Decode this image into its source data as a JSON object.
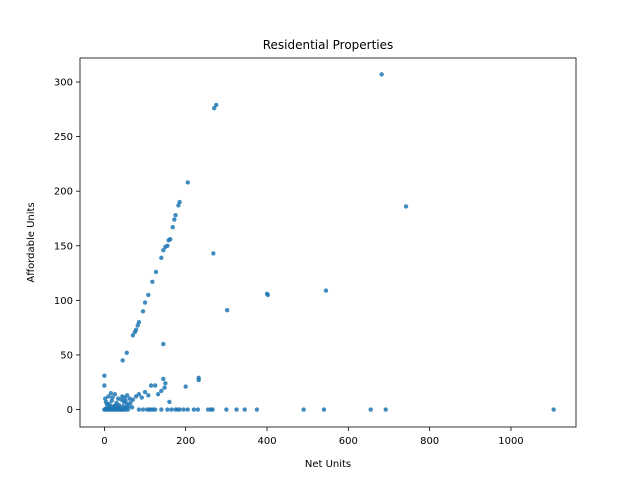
{
  "chart_data": {
    "type": "scatter",
    "title": "Residential Properties",
    "xlabel": "Net Units",
    "ylabel": "Affordable Units",
    "xlim": [
      -60,
      1160
    ],
    "ylim": [
      -16,
      322
    ],
    "xticks": [
      0,
      200,
      400,
      600,
      800,
      1000
    ],
    "yticks": [
      0,
      50,
      100,
      150,
      200,
      250,
      300
    ],
    "grid": false,
    "legend": "none",
    "point_color": "#1f77b4",
    "series": [
      {
        "points": [
          [
            0,
            0
          ],
          [
            2,
            0
          ],
          [
            4,
            1
          ],
          [
            6,
            0
          ],
          [
            8,
            2
          ],
          [
            10,
            0
          ],
          [
            12,
            1
          ],
          [
            14,
            0
          ],
          [
            16,
            3
          ],
          [
            18,
            0
          ],
          [
            20,
            1
          ],
          [
            22,
            0
          ],
          [
            24,
            2
          ],
          [
            26,
            0
          ],
          [
            28,
            4
          ],
          [
            30,
            0
          ],
          [
            32,
            1
          ],
          [
            34,
            0
          ],
          [
            36,
            2
          ],
          [
            38,
            0
          ],
          [
            40,
            0
          ],
          [
            42,
            1
          ],
          [
            44,
            0
          ],
          [
            46,
            3
          ],
          [
            48,
            0
          ],
          [
            50,
            1
          ],
          [
            52,
            0
          ],
          [
            54,
            2
          ],
          [
            56,
            5
          ],
          [
            58,
            0
          ],
          [
            60,
            3
          ],
          [
            64,
            6
          ],
          [
            68,
            2
          ],
          [
            12,
            5
          ],
          [
            18,
            8
          ],
          [
            24,
            3
          ],
          [
            30,
            6
          ],
          [
            36,
            4
          ],
          [
            42,
            9
          ],
          [
            48,
            7
          ],
          [
            20,
            11
          ],
          [
            26,
            14
          ],
          [
            34,
            10
          ],
          [
            44,
            12
          ],
          [
            52,
            8
          ],
          [
            0,
            31
          ],
          [
            0,
            22
          ],
          [
            2,
            10
          ],
          [
            4,
            7
          ],
          [
            6,
            5
          ],
          [
            10,
            12
          ],
          [
            16,
            15
          ],
          [
            50,
            11
          ],
          [
            56,
            13
          ],
          [
            62,
            10
          ],
          [
            70,
            9
          ],
          [
            78,
            12
          ],
          [
            85,
            14
          ],
          [
            92,
            11
          ],
          [
            100,
            16
          ],
          [
            108,
            13
          ],
          [
            115,
            22
          ],
          [
            125,
            22
          ],
          [
            132,
            14
          ],
          [
            140,
            17
          ],
          [
            148,
            20
          ],
          [
            150,
            24
          ],
          [
            145,
            28
          ],
          [
            160,
            7
          ],
          [
            200,
            21
          ],
          [
            232,
            29
          ],
          [
            232,
            27
          ],
          [
            45,
            45
          ],
          [
            55,
            52
          ],
          [
            70,
            68
          ],
          [
            75,
            71
          ],
          [
            78,
            73
          ],
          [
            82,
            77
          ],
          [
            85,
            80
          ],
          [
            95,
            90
          ],
          [
            100,
            98
          ],
          [
            108,
            105
          ],
          [
            118,
            117
          ],
          [
            127,
            126
          ],
          [
            140,
            139
          ],
          [
            145,
            146
          ],
          [
            150,
            149
          ],
          [
            155,
            150
          ],
          [
            158,
            155
          ],
          [
            162,
            156
          ],
          [
            168,
            167
          ],
          [
            172,
            174
          ],
          [
            175,
            178
          ],
          [
            182,
            187
          ],
          [
            185,
            190
          ],
          [
            205,
            208
          ],
          [
            270,
            276
          ],
          [
            275,
            279
          ],
          [
            145,
            60
          ],
          [
            268,
            143
          ],
          [
            302,
            91
          ],
          [
            400,
            106
          ],
          [
            402,
            105
          ],
          [
            545,
            109
          ],
          [
            682,
            307
          ],
          [
            742,
            186
          ],
          [
            85,
            0
          ],
          [
            95,
            0
          ],
          [
            105,
            0
          ],
          [
            110,
            0
          ],
          [
            115,
            0
          ],
          [
            120,
            0
          ],
          [
            125,
            0
          ],
          [
            140,
            0
          ],
          [
            155,
            0
          ],
          [
            165,
            0
          ],
          [
            175,
            0
          ],
          [
            180,
            0
          ],
          [
            185,
            0
          ],
          [
            195,
            0
          ],
          [
            205,
            0
          ],
          [
            220,
            0
          ],
          [
            230,
            0
          ],
          [
            255,
            0
          ],
          [
            262,
            0
          ],
          [
            266,
            0
          ],
          [
            300,
            0
          ],
          [
            325,
            0
          ],
          [
            345,
            0
          ],
          [
            375,
            0
          ],
          [
            490,
            0
          ],
          [
            540,
            0
          ],
          [
            655,
            0
          ],
          [
            692,
            0
          ],
          [
            1105,
            0
          ]
        ]
      }
    ]
  }
}
